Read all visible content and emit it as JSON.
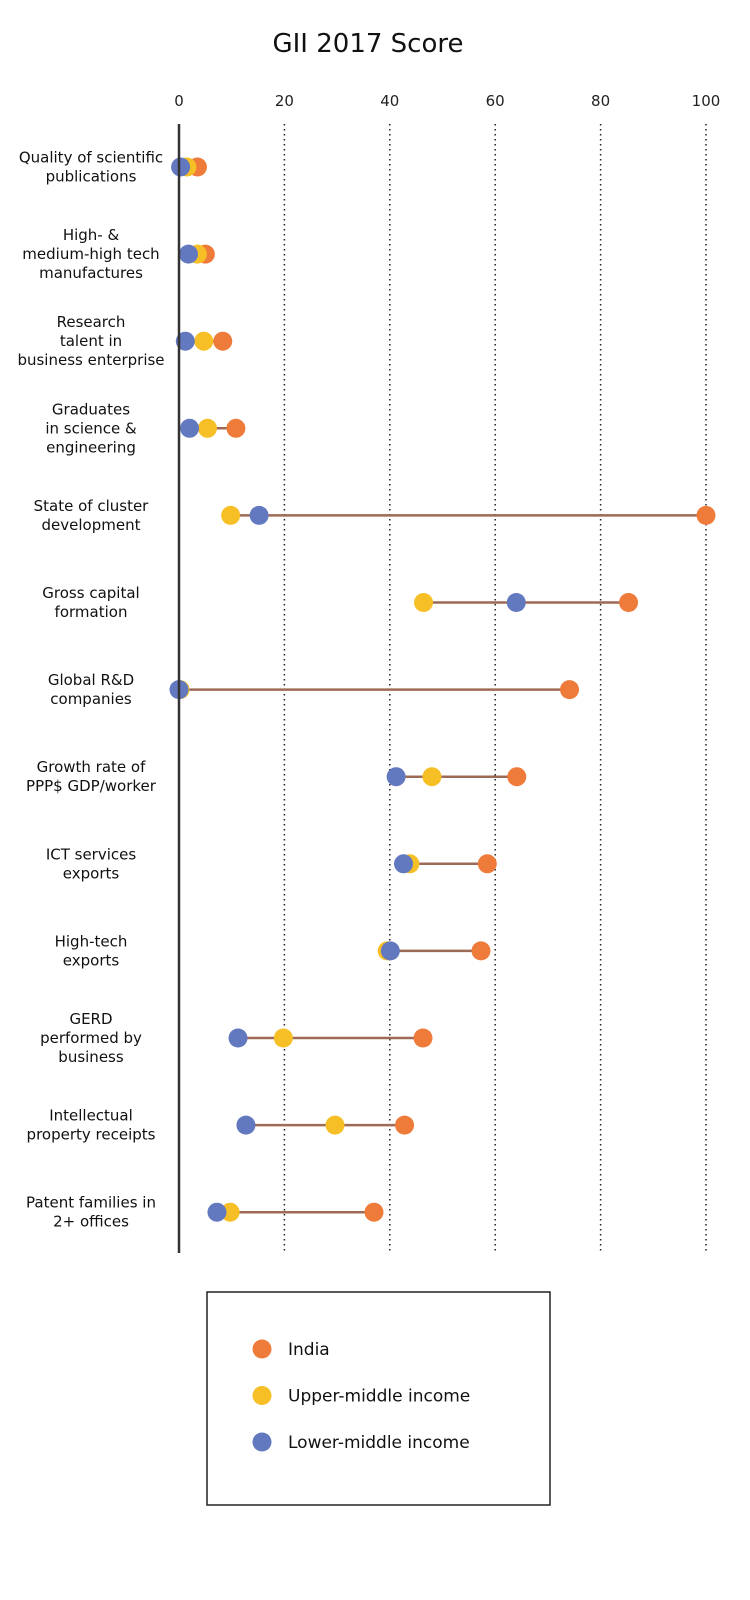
{
  "chart_data": {
    "type": "dot-range",
    "title": "GII 2017 Score",
    "xlabel": "",
    "ylabel": "",
    "xlim": [
      0,
      100
    ],
    "xticks": [
      0,
      20,
      40,
      60,
      80,
      100
    ],
    "grid": "vertical dotted",
    "categories": [
      "Quality of scientific publications",
      "High- & medium-high tech manufactures",
      "Research talent in business enterprise",
      "Graduates in science & engineering",
      "State of cluster development",
      "Gross capital formation",
      "Global R&D companies",
      "Growth rate of PPP$ GDP/worker",
      "ICT services exports",
      "High-tech exports",
      "GERD performed by business",
      "Intellectual property receipts",
      "Patent families in 2+ offices"
    ],
    "category_lines": [
      [
        "Quality of scientific",
        "publications"
      ],
      [
        "High- &",
        "medium-high tech",
        "manufactures"
      ],
      [
        "Research",
        "talent in",
        "business enterprise"
      ],
      [
        "Graduates",
        "in science &",
        "engineering"
      ],
      [
        "State of cluster",
        "development"
      ],
      [
        "Gross capital",
        "formation"
      ],
      [
        "Global R&D",
        "companies"
      ],
      [
        "Growth rate of",
        "PPP$ GDP/worker"
      ],
      [
        "ICT services",
        "exports"
      ],
      [
        "High-tech",
        "exports"
      ],
      [
        "GERD",
        "performed by",
        "business"
      ],
      [
        "Intellectual",
        "property receipts"
      ],
      [
        "Patent families in",
        "2+ offices"
      ]
    ],
    "series": [
      {
        "name": "India",
        "color": "#ef7b3a",
        "values": [
          3.5,
          5,
          8.3,
          10.8,
          100,
          85.3,
          74.1,
          64.1,
          58.5,
          57.3,
          46.3,
          42.8,
          37
        ]
      },
      {
        "name": "Upper-middle income",
        "color": "#f6bf26",
        "values": [
          1.5,
          3.5,
          4.7,
          5.4,
          9.8,
          46.4,
          0.2,
          48,
          43.8,
          39.5,
          19.8,
          29.6,
          9.7
        ]
      },
      {
        "name": "Lower-middle income",
        "color": "#6279c0",
        "values": [
          0.3,
          1.8,
          1.2,
          2,
          15.2,
          64,
          0,
          41.2,
          42.6,
          40.1,
          11.2,
          12.7,
          7.2
        ]
      }
    ],
    "range_line_color": "#9c6a55",
    "legend": {
      "position": "bottom-center",
      "entries": [
        "India",
        "Upper-middle income",
        "Lower-middle income"
      ]
    }
  }
}
